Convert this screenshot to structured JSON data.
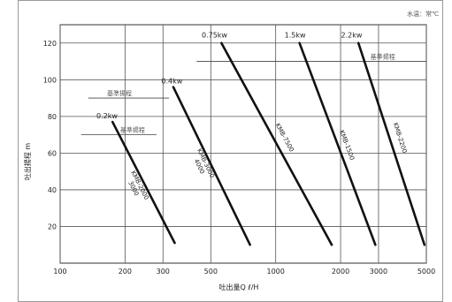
{
  "note": "水温：常℃",
  "chart_data": {
    "type": "line",
    "xlabel": "吐出量Q ℓ/H",
    "ylabel": "吐出揚程 m",
    "x_scale": "log",
    "xlim": [
      100,
      5000
    ],
    "ylim": [
      0,
      130
    ],
    "x_ticks": [
      "100",
      "200",
      "300",
      "500",
      "1000",
      "2000",
      "3000",
      "5000"
    ],
    "x_tick_values": [
      100,
      200,
      300,
      500,
      1000,
      2000,
      3000,
      5000
    ],
    "y_ticks": [
      "20",
      "40",
      "60",
      "80",
      "100",
      "120"
    ],
    "y_tick_values": [
      20,
      40,
      60,
      80,
      100,
      120
    ],
    "grid": true,
    "series": [
      {
        "name": "0.2kw",
        "model": "KMB-2000\n3000",
        "points": [
          [
            175,
            77
          ],
          [
            340,
            11
          ]
        ],
        "label_at": [
          165,
          79
        ],
        "model_at": [
          230,
          42
        ]
      },
      {
        "name": "0.4kw",
        "model": "KMB-3000\n4000",
        "points": [
          [
            335,
            96
          ],
          [
            760,
            10
          ]
        ],
        "label_at": [
          330,
          98
        ],
        "model_at": [
          465,
          54
        ]
      },
      {
        "name": "0.75kw",
        "model": "KMB-7500",
        "points": [
          [
            560,
            120
          ],
          [
            1820,
            10
          ]
        ],
        "label_at": [
          520,
          123
        ],
        "model_at": [
          1080,
          68
        ]
      },
      {
        "name": "1.5kw",
        "model": "KMB-1500",
        "points": [
          [
            1290,
            120
          ],
          [
            2900,
            10
          ]
        ],
        "label_at": [
          1230,
          123
        ],
        "model_at": [
          2100,
          64
        ]
      },
      {
        "name": "2.2kw",
        "model": "KMB-2200",
        "points": [
          [
            2420,
            120
          ],
          [
            4900,
            10
          ]
        ],
        "label_at": [
          2250,
          123
        ],
        "model_at": [
          3700,
          68
        ]
      }
    ],
    "reference_lines": [
      {
        "label": "基準揚程",
        "y": 110,
        "x_range": [
          430,
          5000
        ],
        "label_x": 2750
      },
      {
        "label": "基準揚程",
        "y": 90,
        "x_range": [
          135,
          320
        ],
        "label_x": 165
      },
      {
        "label": "基準揚程",
        "y": 70,
        "x_range": [
          125,
          280
        ],
        "label_x": 190
      }
    ]
  }
}
